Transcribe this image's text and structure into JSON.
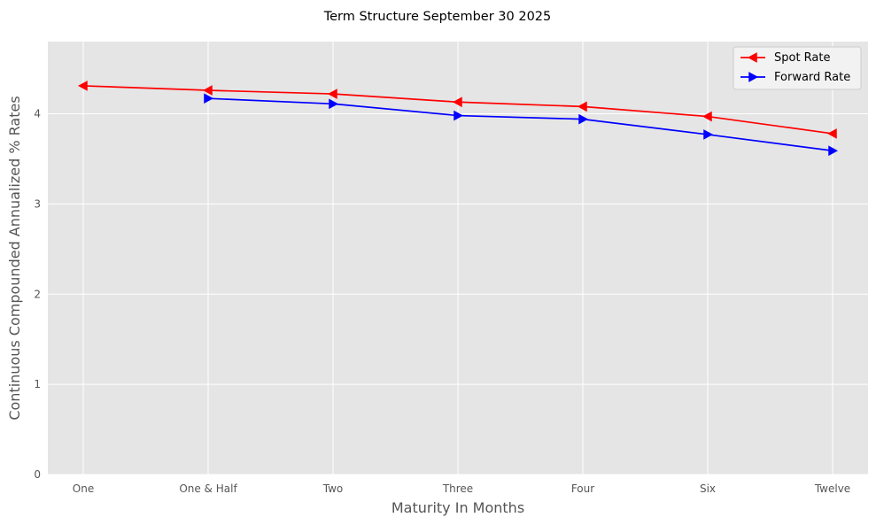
{
  "chart_data": {
    "type": "line",
    "title": "Term Structure September 30 2025",
    "xlabel": "Maturity In Months",
    "ylabel": "Continuous Compounded Annualized % Rates",
    "categories": [
      "One",
      "One & Half",
      "Two",
      "Three",
      "Four",
      "Six",
      "Twelve"
    ],
    "ylim": [
      0,
      4.8
    ],
    "yticks": [
      0,
      1,
      2,
      3,
      4
    ],
    "grid": true,
    "legend_position": "top-right",
    "series": [
      {
        "name": "Spot Rate",
        "color": "#ff0000",
        "marker": "triangle-left",
        "values": [
          4.31,
          4.26,
          4.22,
          4.13,
          4.08,
          3.97,
          3.78
        ]
      },
      {
        "name": "Forward Rate",
        "color": "#0000ff",
        "marker": "triangle-right",
        "values": [
          null,
          4.17,
          4.11,
          3.98,
          3.94,
          3.77,
          3.59
        ]
      }
    ]
  }
}
